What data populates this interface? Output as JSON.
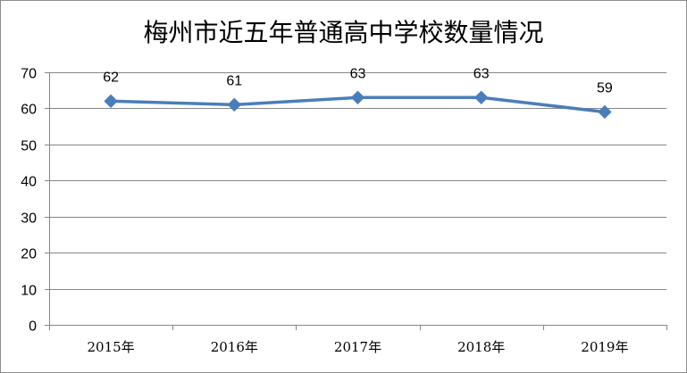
{
  "chart_data": {
    "type": "line",
    "title": "梅州市近五年普通高中学校数量情况",
    "categories": [
      "2015年",
      "2016年",
      "2017年",
      "2018年",
      "2019年"
    ],
    "series": [
      {
        "values": [
          62,
          61,
          63,
          63,
          59
        ],
        "color": "#4a7ebb"
      }
    ],
    "ylim": [
      0,
      70
    ],
    "yticks": [
      0,
      10,
      20,
      30,
      40,
      50,
      60,
      70
    ],
    "grid": true,
    "legend": "none",
    "marker": "diamond",
    "data_labels": true
  }
}
